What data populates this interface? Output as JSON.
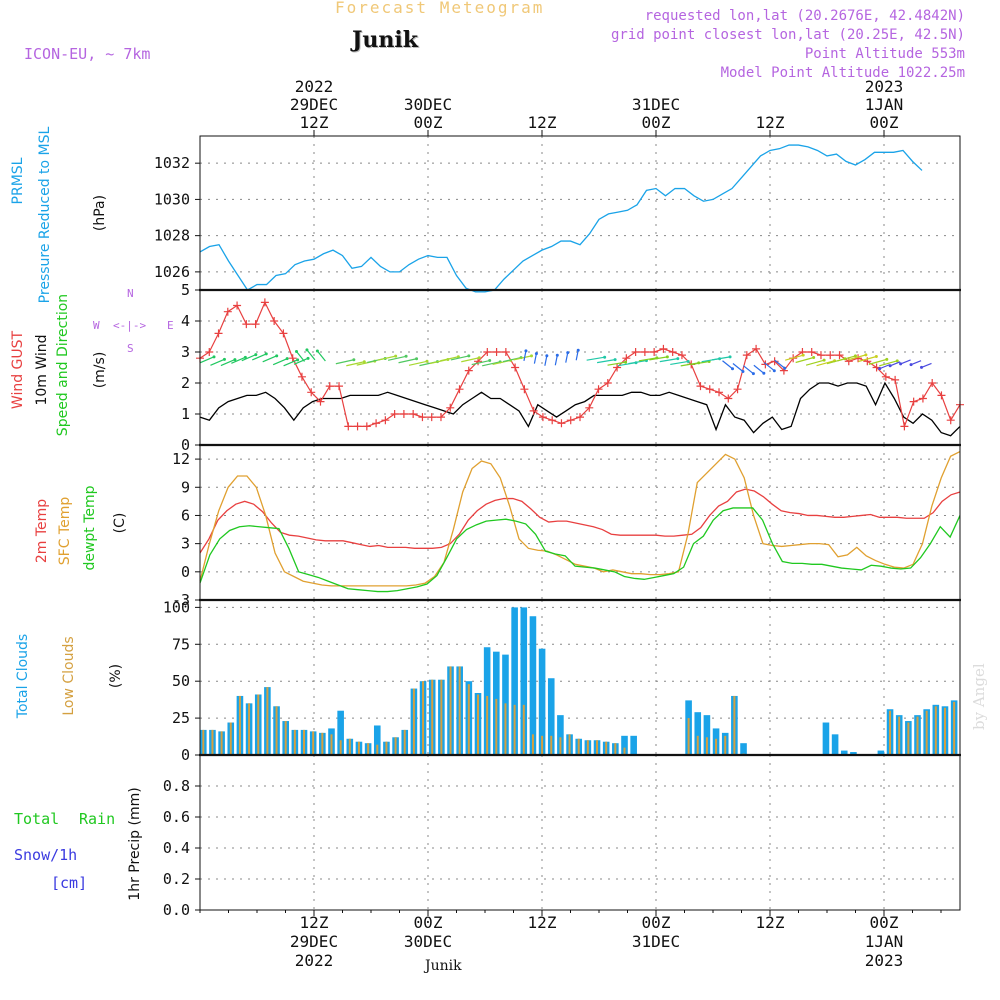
{
  "header": {
    "title": "Forecast Meteogram",
    "location": "Junik",
    "model": "ICON-EU, ~ 7km",
    "requested": "requested lon,lat (20.2676E, 42.4842N)",
    "gridpoint": "grid point closest lon,lat (20.25E, 42.5N)",
    "altitude": "Point Altitude 553m",
    "model_altitude": "Model Point Altitude 1022.25m"
  },
  "credit": "by Angel",
  "footer_location": "Junik",
  "colors": {
    "pressure": "#1aa3e8",
    "gust": "#e84040",
    "wind": "#000000",
    "temp": "#e84040",
    "sfc": "#e0a030",
    "dewpt": "#20c820",
    "total_clouds": "#1aa3e8",
    "low_clouds": "#d4a040",
    "rain": "#20c820",
    "snow": "#3a3ae0",
    "purple": "#b565e0"
  },
  "top_axis": [
    {
      "h": 12,
      "line1": "12Z",
      "line2": "29DEC",
      "line3": "2022"
    },
    {
      "h": 24,
      "line1": "00Z",
      "line2": "30DEC",
      "line3": ""
    },
    {
      "h": 36,
      "line1": "12Z",
      "line2": "",
      "line3": ""
    },
    {
      "h": 48,
      "line1": "00Z",
      "line2": "31DEC",
      "line3": ""
    },
    {
      "h": 60,
      "line1": "12Z",
      "line2": "",
      "line3": ""
    },
    {
      "h": 72,
      "line1": "00Z",
      "line2": "1JAN",
      "line3": "2023"
    }
  ],
  "bottom_axis": [
    {
      "h": 12,
      "line1": "12Z",
      "line2": "29DEC",
      "line3": "2022"
    },
    {
      "h": 24,
      "line1": "00Z",
      "line2": "30DEC",
      "line3": ""
    },
    {
      "h": 36,
      "line1": "12Z",
      "line2": "",
      "line3": ""
    },
    {
      "h": 48,
      "line1": "00Z",
      "line2": "31DEC",
      "line3": ""
    },
    {
      "h": 60,
      "line1": "12Z",
      "line2": "",
      "line3": ""
    },
    {
      "h": 72,
      "line1": "00Z",
      "line2": "1JAN",
      "line3": "2023"
    }
  ],
  "labels": {
    "p1_line1": "PRMSL",
    "p1_line2": "Pressure Reduced to MSL",
    "p1_unit": "(hPa)",
    "p2_gust": "Wind GUST",
    "p2_wind": "10m Wind",
    "p2_dir": "Speed and Direction",
    "p2_unit": "(m/s)",
    "compass_n": "N",
    "compass_s": "S",
    "compass_w": "W",
    "compass_e": "E",
    "p3_temp": "2m Temp",
    "p3_sfc": "SFC Temp",
    "p3_dew": "dewpt Temp",
    "p3_unit": "(C)",
    "p4_total": "Total Clouds",
    "p4_low": "Low Clouds",
    "p4_unit": "(%)",
    "p5_total": "Total",
    "p5_rain": "Rain",
    "p5_snow": "Snow/1h",
    "p5_cm": "[cm]",
    "p5_unit": "1hr Precip (mm)"
  },
  "chart_data": [
    {
      "type": "line",
      "name": "pressure",
      "x_unit": "hours from 29 DEC 2022 00Z",
      "ylim": [
        1025,
        1033.5
      ],
      "yticks": [
        1026,
        1028,
        1030,
        1032
      ],
      "ylabel": "(hPa)",
      "series": [
        {
          "name": "PRMSL",
          "x": [
            0,
            1,
            2,
            3,
            4,
            5,
            6,
            7,
            8,
            9,
            10,
            11,
            12,
            13,
            14,
            15,
            16,
            17,
            18,
            19,
            20,
            21,
            22,
            23,
            24,
            25,
            26,
            27,
            28,
            29,
            30,
            31,
            32,
            33,
            34,
            35,
            36,
            37,
            38,
            39,
            40,
            41,
            42,
            43,
            44,
            45,
            46,
            47,
            48,
            49,
            50,
            51,
            52,
            53,
            54,
            55,
            56,
            57,
            58,
            59,
            60,
            61,
            62,
            63,
            64,
            65,
            66,
            67,
            68,
            69,
            70,
            71,
            72,
            73,
            74,
            75,
            76
          ],
          "values": [
            1027.1,
            1027.4,
            1027.5,
            1026.6,
            1025.8,
            1025.0,
            1025.3,
            1025.3,
            1025.8,
            1025.9,
            1026.4,
            1026.6,
            1026.7,
            1027.0,
            1027.2,
            1026.9,
            1026.2,
            1026.3,
            1026.8,
            1026.3,
            1026.0,
            1026.0,
            1026.4,
            1026.7,
            1026.9,
            1026.8,
            1026.8,
            1025.8,
            1025.1,
            1024.9,
            1024.9,
            1025.0,
            1025.6,
            1026.1,
            1026.6,
            1026.9,
            1027.2,
            1027.4,
            1027.7,
            1027.7,
            1027.5,
            1028.1,
            1028.9,
            1029.2,
            1029.3,
            1029.4,
            1029.7,
            1030.5,
            1030.6,
            1030.2,
            1030.6,
            1030.6,
            1030.2,
            1029.9,
            1030.0,
            1030.3,
            1030.6,
            1031.2,
            1031.8,
            1032.4,
            1032.7,
            1032.8,
            1033.0,
            1033.0,
            1032.9,
            1032.7,
            1032.4,
            1032.5,
            1032.1,
            1031.9,
            1032.2,
            1032.6,
            1032.6,
            1032.6,
            1032.7,
            1032.1,
            1031.6
          ]
        }
      ]
    },
    {
      "type": "line",
      "name": "wind",
      "ylim": [
        0,
        5
      ],
      "yticks": [
        0,
        1,
        2,
        3,
        4,
        5
      ],
      "ylabel": "(m/s)",
      "series": [
        {
          "name": "Wind GUST",
          "values": [
            2.8,
            3.0,
            3.6,
            4.3,
            4.5,
            3.9,
            3.9,
            4.6,
            4.0,
            3.6,
            2.8,
            2.2,
            1.7,
            1.4,
            1.9,
            1.9,
            0.6,
            0.6,
            0.6,
            0.7,
            0.8,
            1.0,
            1.0,
            1.0,
            0.9,
            0.9,
            0.9,
            1.2,
            1.8,
            2.4,
            2.7,
            3.0,
            3.0,
            3.0,
            2.5,
            1.8,
            1.1,
            0.9,
            0.8,
            0.7,
            0.8,
            0.9,
            1.2,
            1.8,
            2.0,
            2.5,
            2.8,
            3.0,
            3.0,
            3.0,
            3.1,
            3.0,
            2.9,
            2.6,
            1.9,
            1.8,
            1.7,
            1.5,
            1.8,
            2.9,
            3.1,
            2.6,
            2.7,
            2.4,
            2.8,
            3.0,
            3.0,
            2.9,
            2.9,
            2.9,
            2.7,
            2.8,
            2.7,
            2.5,
            2.2,
            2.1,
            0.6,
            1.4,
            1.5,
            2.0,
            1.6,
            0.8,
            1.3
          ]
        },
        {
          "name": "10m Wind",
          "values": [
            0.9,
            0.8,
            1.2,
            1.4,
            1.5,
            1.6,
            1.6,
            1.7,
            1.5,
            1.2,
            0.8,
            1.2,
            1.4,
            1.5,
            1.5,
            1.5,
            1.6,
            1.6,
            1.6,
            1.6,
            1.7,
            1.6,
            1.5,
            1.4,
            1.3,
            1.2,
            1.1,
            1.0,
            1.3,
            1.5,
            1.7,
            1.5,
            1.5,
            1.3,
            1.1,
            0.6,
            1.3,
            1.1,
            0.9,
            1.1,
            1.3,
            1.4,
            1.6,
            1.6,
            1.6,
            1.6,
            1.7,
            1.7,
            1.6,
            1.6,
            1.7,
            1.6,
            1.5,
            1.4,
            1.3,
            0.5,
            1.3,
            0.9,
            0.8,
            0.4,
            0.7,
            0.9,
            0.5,
            0.6,
            1.5,
            1.8,
            2.0,
            2.0,
            1.9,
            2.0,
            2.0,
            1.9,
            1.3,
            2.0,
            1.5,
            0.9,
            0.7,
            1.0,
            0.8,
            0.4,
            0.3,
            0.6
          ]
        }
      ]
    },
    {
      "type": "line",
      "name": "temperature",
      "ylim": [
        -3,
        13.5
      ],
      "yticks": [
        -3,
        0,
        3,
        6,
        9,
        12
      ],
      "ylabel": "(C)",
      "series": [
        {
          "name": "2m Temp",
          "values": [
            2.0,
            3.5,
            5.5,
            6.5,
            7.2,
            7.5,
            7.2,
            6.4,
            5.2,
            4.2,
            3.9,
            3.8,
            3.6,
            3.4,
            3.3,
            3.3,
            3.3,
            3.1,
            2.9,
            2.7,
            2.8,
            2.6,
            2.6,
            2.6,
            2.5,
            2.5,
            2.5,
            2.6,
            3.0,
            4.0,
            5.5,
            6.5,
            7.2,
            7.6,
            7.8,
            7.8,
            7.5,
            6.7,
            5.8,
            5.3,
            5.4,
            5.4,
            5.2,
            5.0,
            4.8,
            4.5,
            4.0,
            3.9,
            3.9,
            3.9,
            3.9,
            3.9,
            3.8,
            3.8,
            3.9,
            4.0,
            4.7,
            6.0,
            7.0,
            7.5,
            8.5,
            8.8,
            8.6,
            8.0,
            7.2,
            6.5,
            6.3,
            6.2,
            6.0,
            6.0,
            5.9,
            5.8,
            5.8,
            5.9,
            6.0,
            6.1,
            5.8,
            5.8,
            5.8,
            5.7,
            5.7,
            5.7,
            6.3,
            7.5,
            8.2,
            8.5
          ]
        },
        {
          "name": "SFC Temp",
          "values": [
            -1.0,
            3.0,
            6.5,
            9.0,
            10.2,
            10.2,
            9.0,
            6.0,
            2.0,
            0.0,
            -0.5,
            -1.0,
            -1.2,
            -1.4,
            -1.5,
            -1.5,
            -1.5,
            -1.5,
            -1.5,
            -1.5,
            -1.5,
            -1.5,
            -1.5,
            -1.4,
            -1.2,
            -0.5,
            1.0,
            4.5,
            8.5,
            11.0,
            11.8,
            11.5,
            10.0,
            7.0,
            3.5,
            2.5,
            2.3,
            2.2,
            1.8,
            1.3,
            0.8,
            0.6,
            0.4,
            0.0,
            0.2,
            0.0,
            -0.2,
            -0.2,
            -0.3,
            -0.3,
            -0.2,
            0.0,
            4.0,
            9.5,
            10.5,
            11.5,
            12.5,
            12.0,
            10.0,
            6.0,
            3.0,
            2.8,
            2.7,
            2.8,
            2.9,
            3.0,
            3.0,
            2.9,
            1.6,
            1.8,
            2.6,
            1.7,
            1.2,
            0.8,
            0.5,
            0.4,
            0.8,
            3.0,
            7.0,
            10.0,
            12.3,
            12.8
          ]
        },
        {
          "name": "dewpt Temp",
          "values": [
            -1.2,
            1.8,
            3.5,
            4.4,
            4.8,
            4.9,
            4.8,
            4.7,
            4.6,
            2.5,
            0.0,
            -0.3,
            -0.6,
            -1.0,
            -1.4,
            -1.8,
            -1.9,
            -2.0,
            -2.1,
            -2.1,
            -2.0,
            -1.8,
            -1.6,
            -1.3,
            -0.4,
            1.5,
            3.5,
            4.5,
            5.0,
            5.4,
            5.5,
            5.6,
            5.4,
            5.1,
            4.0,
            2.2,
            1.9,
            1.7,
            0.6,
            0.5,
            0.4,
            0.2,
            0.0,
            -0.5,
            -0.7,
            -0.8,
            -0.6,
            -0.4,
            -0.2,
            0.5,
            3.0,
            3.8,
            5.5,
            6.5,
            6.8,
            6.8,
            6.8,
            5.5,
            3.0,
            1.1,
            0.9,
            0.9,
            0.8,
            0.8,
            0.6,
            0.4,
            0.3,
            0.2,
            0.7,
            0.6,
            0.4,
            0.3,
            0.4,
            1.5,
            3.0,
            4.8,
            3.7,
            6.0
          ]
        }
      ]
    },
    {
      "type": "bar",
      "name": "clouds",
      "ylim": [
        0,
        105
      ],
      "yticks": [
        0,
        25,
        50,
        75,
        100
      ],
      "ylabel": "(%)",
      "series": [
        {
          "name": "Total Clouds",
          "values": [
            17,
            17,
            16,
            22,
            40,
            35,
            41,
            46,
            33,
            23,
            17,
            17,
            16,
            15,
            18,
            30,
            11,
            9,
            8,
            20,
            9,
            12,
            17,
            45,
            50,
            51,
            51,
            60,
            60,
            50,
            42,
            73,
            70,
            68,
            100,
            100,
            94,
            72,
            52,
            27,
            14,
            11,
            10,
            10,
            9,
            8,
            13,
            13,
            0,
            0,
            0,
            0,
            0,
            37,
            29,
            27,
            18,
            15,
            40,
            8,
            0,
            0,
            0,
            0,
            0,
            0,
            0,
            0,
            22,
            14,
            3,
            2,
            0,
            0,
            3,
            31,
            27,
            23,
            27,
            31,
            34,
            33,
            37
          ]
        },
        {
          "name": "Low Clouds",
          "values": [
            17,
            17,
            16,
            22,
            40,
            35,
            41,
            46,
            33,
            23,
            17,
            17,
            16,
            15,
            14,
            10,
            11,
            9,
            8,
            7,
            9,
            12,
            17,
            45,
            50,
            51,
            51,
            60,
            60,
            48,
            41,
            40,
            38,
            35,
            34,
            34,
            14,
            13,
            13,
            12,
            14,
            11,
            10,
            10,
            9,
            8,
            5,
            0,
            0,
            0,
            0,
            0,
            0,
            25,
            13,
            12,
            11,
            13,
            40,
            1,
            0,
            0,
            0,
            0,
            0,
            0,
            0,
            0,
            0,
            0,
            0,
            0,
            0,
            0,
            0,
            30,
            26,
            22,
            26,
            30,
            33,
            32,
            36
          ]
        }
      ]
    },
    {
      "type": "bar",
      "name": "precipitation",
      "ylim": [
        0,
        1.0
      ],
      "yticks": [
        0,
        0.2,
        0.4,
        0.6,
        0.8
      ],
      "ylabel": "1hr Precip (mm)",
      "series": [
        {
          "name": "Total",
          "values": []
        }
      ]
    }
  ]
}
